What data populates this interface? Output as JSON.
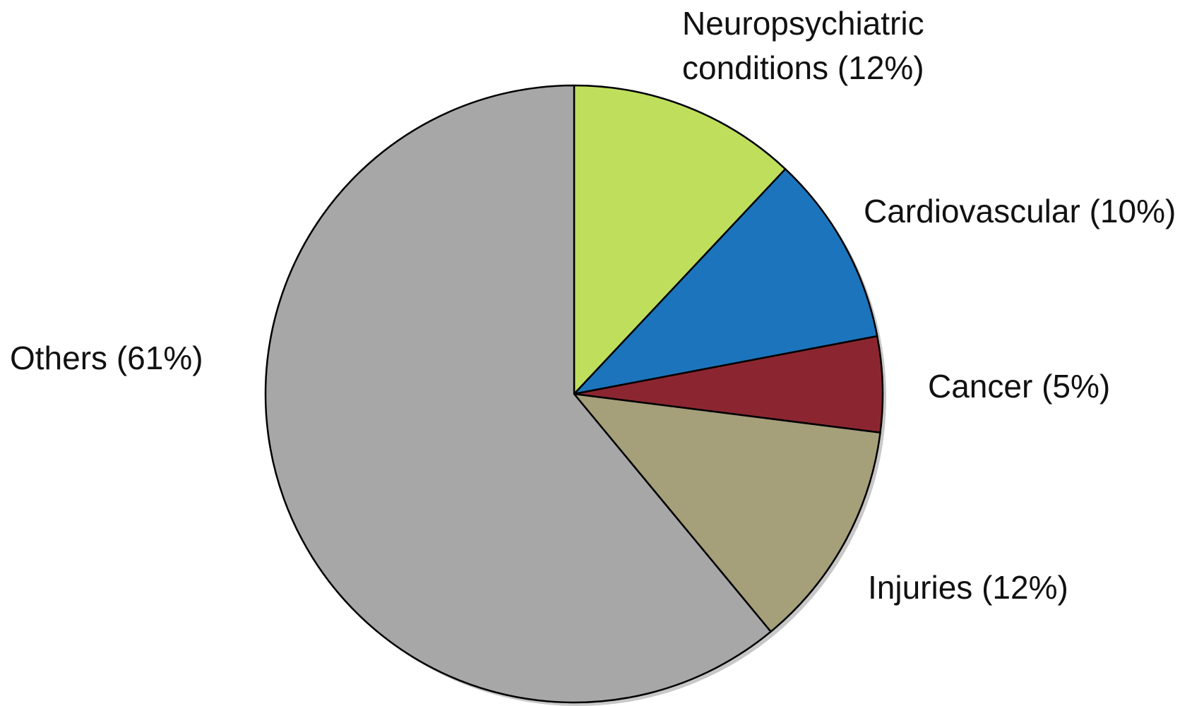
{
  "chart_data": {
    "type": "pie",
    "categories": [
      "Neuropsychiatric conditions",
      "Cardiovascular",
      "Cancer",
      "Injuries",
      "Others"
    ],
    "values": [
      12,
      10,
      5,
      12,
      61
    ],
    "value_labels": [
      "(12%)",
      "(10%)",
      "(5%)",
      "(12%)",
      "(61%)"
    ],
    "colors": [
      "#bfdf5c",
      "#1c75bc",
      "#8b2630",
      "#a59f7a",
      "#a7a7a7"
    ]
  }
}
